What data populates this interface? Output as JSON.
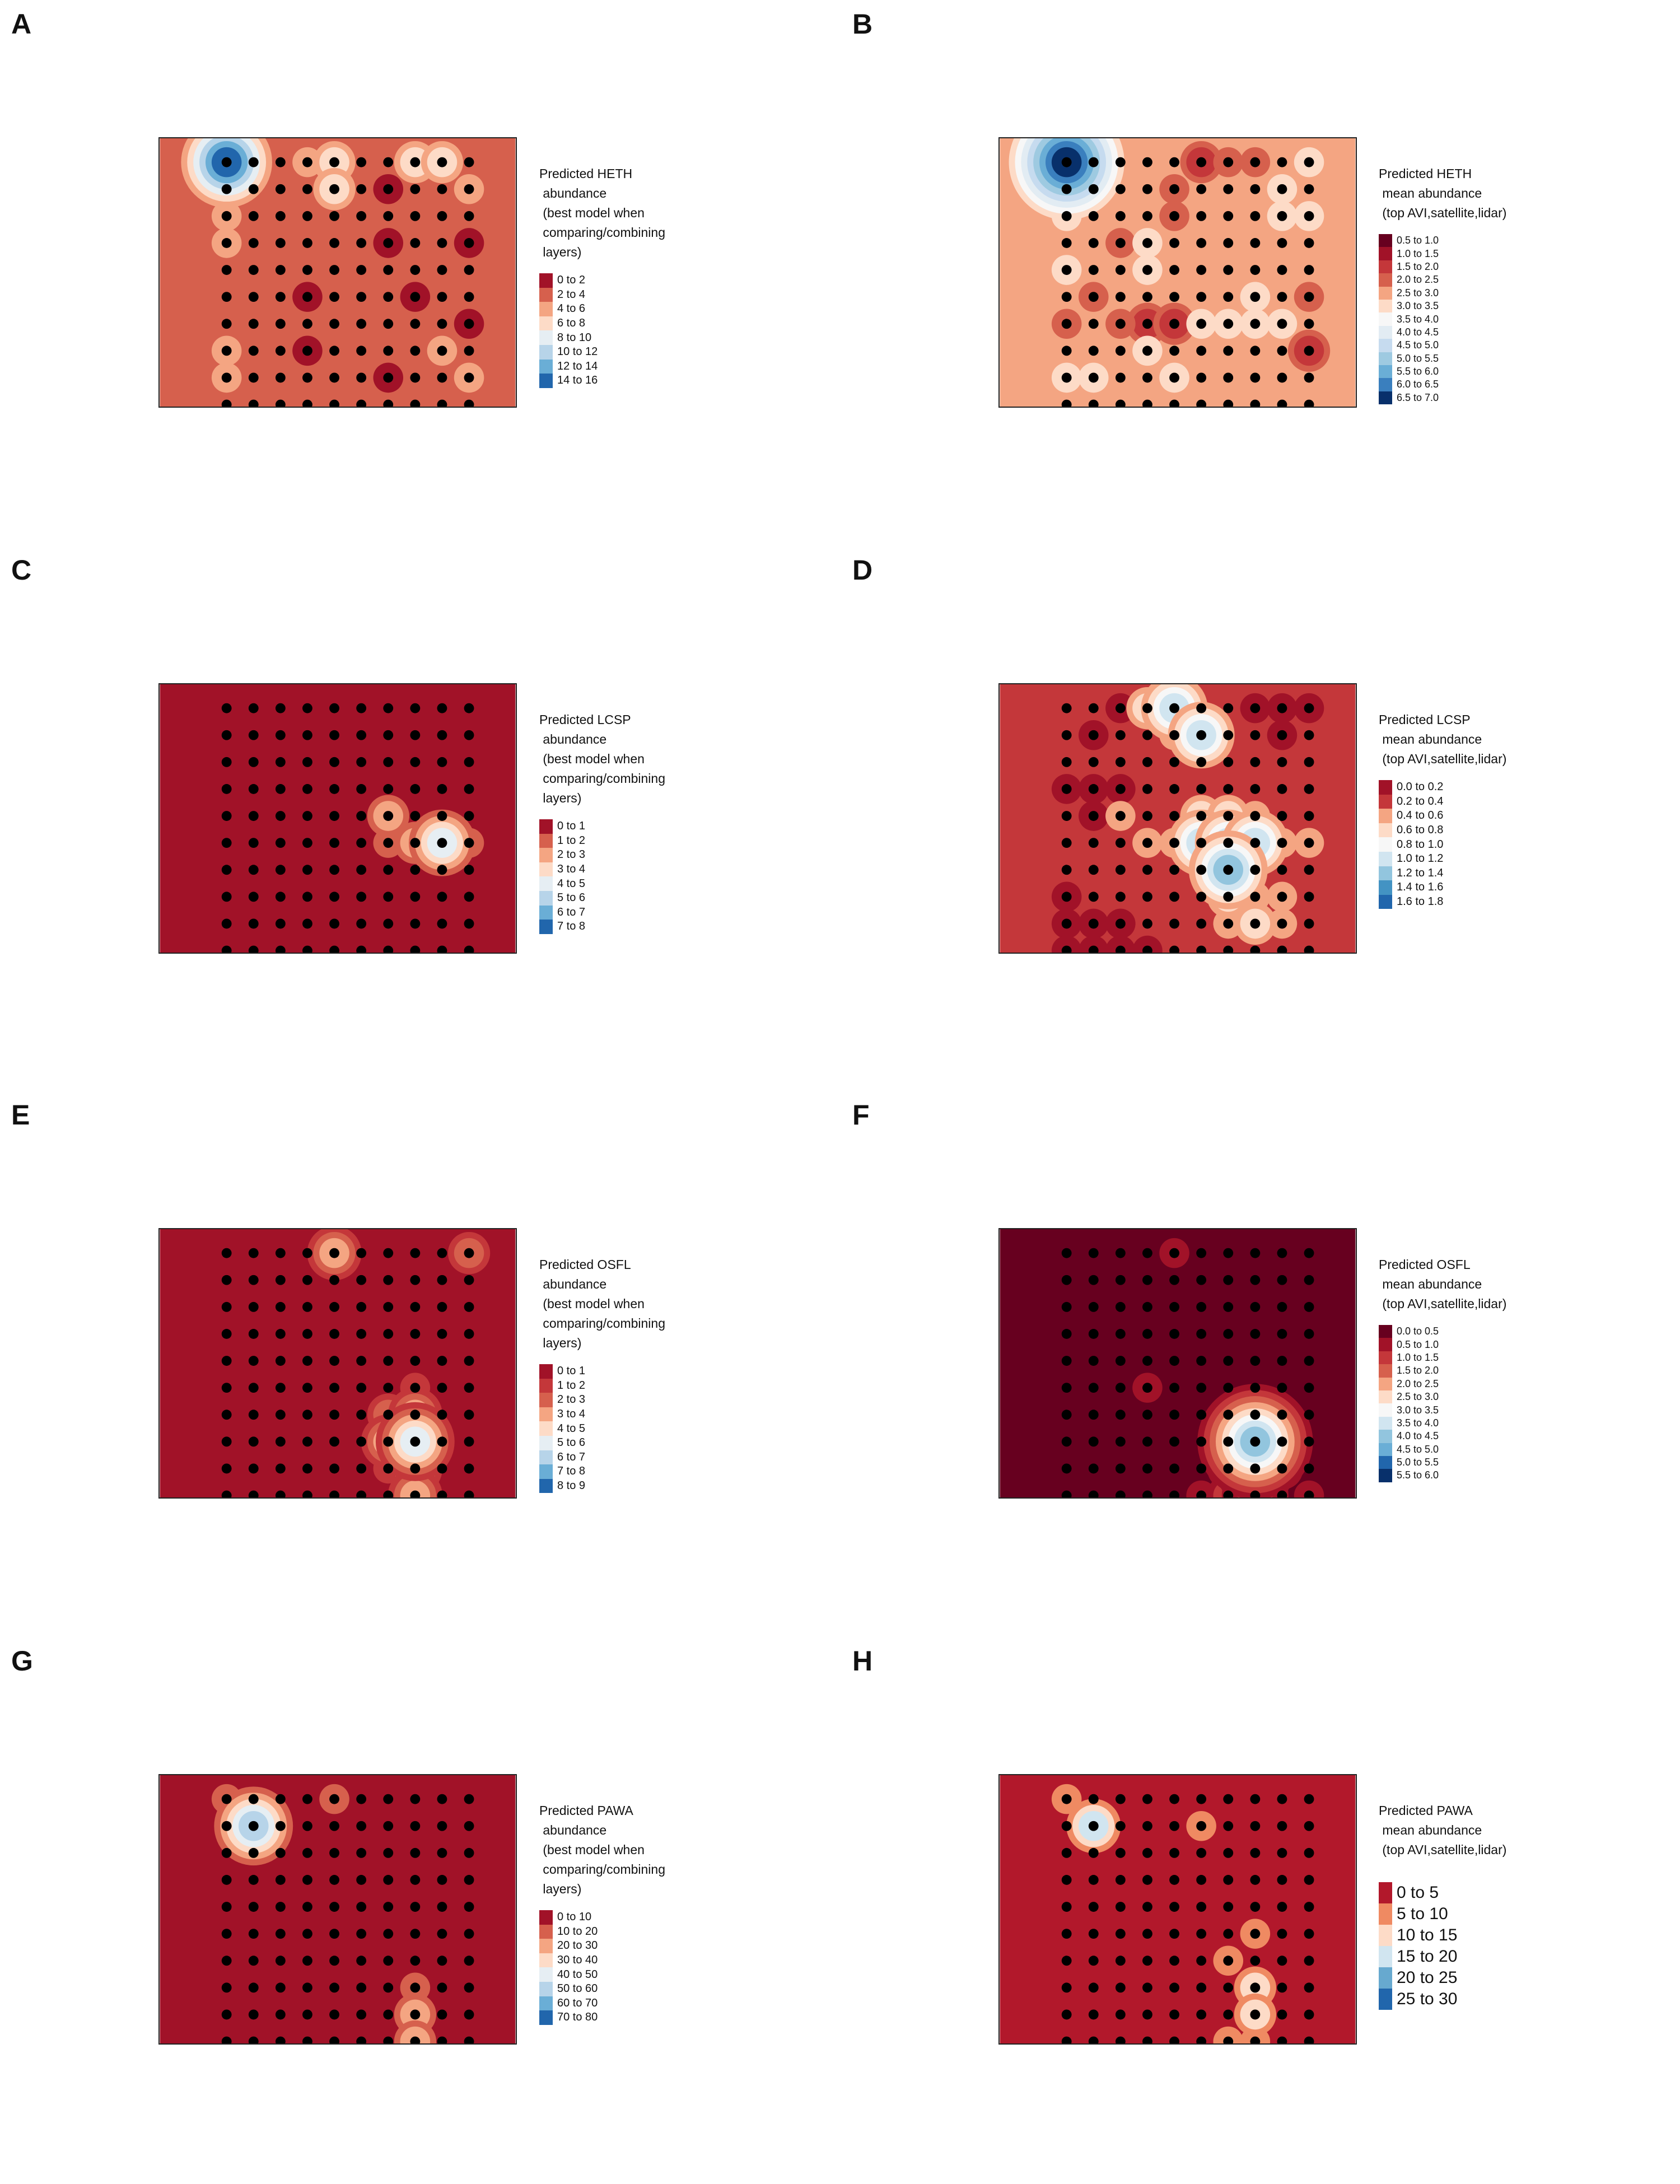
{
  "panels": [
    {
      "letter": "A",
      "legend_title": [
        "Predicted HETH",
        " abundance",
        " (best model when",
        " comparing/combining",
        " layers)"
      ],
      "legend": [
        "0 to 2",
        "2 to 4",
        "4 to 6",
        "6 to 8",
        "8 to 10",
        "10 to 12",
        "12 to 14",
        "14 to 16"
      ],
      "colors": [
        "#a11228",
        "#d6604d",
        "#f4a582",
        "#fddbc7",
        "#e6eef3",
        "#b7d4e9",
        "#6aaed6",
        "#2166ac"
      ],
      "base": 1,
      "hotspots": [
        [
          0,
          0,
          7
        ],
        [
          0,
          1,
          2
        ],
        [
          0,
          2,
          2
        ],
        [
          0,
          3,
          2
        ],
        [
          4,
          0,
          3
        ],
        [
          4,
          1,
          3
        ],
        [
          3,
          0,
          2
        ],
        [
          7,
          0,
          3
        ],
        [
          8,
          0,
          3
        ],
        [
          6,
          1,
          0
        ],
        [
          6,
          3,
          0
        ],
        [
          3,
          5,
          0
        ],
        [
          3,
          7,
          0
        ],
        [
          7,
          5,
          0
        ],
        [
          6,
          8,
          0
        ],
        [
          0,
          8,
          2
        ],
        [
          0,
          7,
          2
        ],
        [
          9,
          1,
          2
        ],
        [
          9,
          8,
          2
        ],
        [
          8,
          7,
          2
        ],
        [
          9,
          3,
          0
        ],
        [
          9,
          6,
          0
        ]
      ]
    },
    {
      "letter": "B",
      "legend_title": [
        "Predicted HETH",
        " mean abundance",
        " (top AVI,satellite,lidar)"
      ],
      "legend": [
        "0.5 to 1.0",
        "1.0 to 1.5",
        "1.5 to 2.0",
        "2.0 to 2.5",
        "2.5 to 3.0",
        "3.0 to 3.5",
        "3.5 to 4.0",
        "4.0 to 4.5",
        "4.5 to 5.0",
        "5.0 to 5.5",
        "5.5 to 6.0",
        "6.0 to 6.5",
        "6.5 to 7.0"
      ],
      "colors": [
        "#67001f",
        "#a11228",
        "#c4373a",
        "#d6604d",
        "#f4a582",
        "#fddbc7",
        "#f7f7f7",
        "#e2ecf3",
        "#c6dbef",
        "#9ecae1",
        "#6aaed6",
        "#3a7fbe",
        "#08306b"
      ],
      "base": 4,
      "hotspots": [
        [
          0,
          0,
          12
        ],
        [
          0,
          2,
          5
        ],
        [
          0,
          4,
          5
        ],
        [
          0,
          8,
          5
        ],
        [
          1,
          8,
          5
        ],
        [
          2,
          3,
          3
        ],
        [
          3,
          3,
          5
        ],
        [
          3,
          4,
          5
        ],
        [
          4,
          1,
          3
        ],
        [
          4,
          2,
          3
        ],
        [
          5,
          0,
          2
        ],
        [
          6,
          0,
          3
        ],
        [
          7,
          0,
          3
        ],
        [
          8,
          1,
          5
        ],
        [
          8,
          2,
          5
        ],
        [
          9,
          0,
          5
        ],
        [
          9,
          2,
          5
        ],
        [
          9,
          5,
          3
        ],
        [
          9,
          7,
          2
        ],
        [
          8,
          6,
          5
        ],
        [
          7,
          6,
          5
        ],
        [
          7,
          5,
          5
        ],
        [
          6,
          6,
          5
        ],
        [
          5,
          6,
          5
        ],
        [
          3,
          7,
          5
        ],
        [
          4,
          8,
          5
        ],
        [
          2,
          6,
          3
        ],
        [
          3,
          6,
          2
        ],
        [
          4,
          6,
          2
        ],
        [
          1,
          5,
          3
        ],
        [
          0,
          6,
          3
        ]
      ]
    },
    {
      "letter": "C",
      "legend_title": [
        "Predicted LCSP",
        " abundance",
        " (best model when",
        " comparing/combining",
        " layers)"
      ],
      "legend": [
        "0 to 1",
        "1 to 2",
        "2 to 3",
        "3 to 4",
        "4 to 5",
        "5 to 6",
        "6 to 7",
        "7 to 8"
      ],
      "colors": [
        "#a11228",
        "#d6604d",
        "#f4a582",
        "#fddbc7",
        "#e6eef3",
        "#b7d4e9",
        "#6aaed6",
        "#2166ac"
      ],
      "base": 0,
      "hotspots": [
        [
          8,
          5,
          4
        ],
        [
          7,
          5,
          2
        ],
        [
          6,
          4,
          2
        ],
        [
          6,
          5,
          1
        ],
        [
          9,
          5,
          1
        ]
      ]
    },
    {
      "letter": "D",
      "legend_title": [
        "Predicted LCSP",
        " mean abundance",
        " (top AVI,satellite,lidar)"
      ],
      "legend": [
        "0.0 to 0.2",
        "0.2 to 0.4",
        "0.4 to 0.6",
        "0.6 to 0.8",
        "0.8 to 1.0",
        "1.0 to 1.2",
        "1.2 to 1.4",
        "1.4 to 1.6",
        "1.6 to 1.8"
      ],
      "colors": [
        "#a11228",
        "#c4373a",
        "#f4a582",
        "#fddbc7",
        "#f7f7f7",
        "#d1e5f0",
        "#92c5de",
        "#4393c3",
        "#2166ac"
      ],
      "base": 1,
      "hotspots": [
        [
          3,
          0,
          3
        ],
        [
          4,
          0,
          5
        ],
        [
          5,
          1,
          5
        ],
        [
          4,
          1,
          2
        ],
        [
          5,
          5,
          5
        ],
        [
          6,
          5,
          5
        ],
        [
          7,
          5,
          5
        ],
        [
          6,
          6,
          6
        ],
        [
          5,
          4,
          3
        ],
        [
          6,
          4,
          3
        ],
        [
          7,
          4,
          2
        ],
        [
          8,
          5,
          2
        ],
        [
          3,
          5,
          2
        ],
        [
          4,
          5,
          2
        ],
        [
          6,
          7,
          3
        ],
        [
          7,
          8,
          3
        ],
        [
          7,
          7,
          2
        ],
        [
          6,
          8,
          2
        ],
        [
          8,
          7,
          2
        ],
        [
          8,
          8,
          2
        ],
        [
          9,
          5,
          2
        ],
        [
          2,
          4,
          2
        ],
        [
          0,
          2,
          1
        ],
        [
          0,
          3,
          0
        ],
        [
          1,
          3,
          0
        ],
        [
          2,
          3,
          0
        ],
        [
          1,
          4,
          0
        ],
        [
          7,
          0,
          0
        ],
        [
          8,
          0,
          0
        ],
        [
          9,
          0,
          0
        ],
        [
          8,
          1,
          0
        ],
        [
          2,
          0,
          0
        ],
        [
          1,
          1,
          0
        ],
        [
          0,
          7,
          0
        ],
        [
          0,
          8,
          0
        ],
        [
          1,
          8,
          0
        ],
        [
          2,
          8,
          0
        ],
        [
          0,
          9,
          0
        ],
        [
          1,
          9,
          0
        ],
        [
          2,
          9,
          0
        ],
        [
          3,
          9,
          0
        ]
      ]
    },
    {
      "letter": "E",
      "legend_title": [
        "Predicted OSFL",
        " abundance",
        " (best model when",
        " comparing/combining",
        " layers)"
      ],
      "legend": [
        "0 to 1",
        "1 to 2",
        "2 to 3",
        "3 to 4",
        "4 to 5",
        "5 to 6",
        "6 to 7",
        "7 to 8",
        "8 to 9"
      ],
      "colors": [
        "#a11228",
        "#c4373a",
        "#d6604d",
        "#f4a582",
        "#fddbc7",
        "#e6eef3",
        "#b7d4e9",
        "#6aaed6",
        "#2166ac"
      ],
      "base": 0,
      "hotspots": [
        [
          4,
          0,
          3
        ],
        [
          9,
          0,
          2
        ],
        [
          7,
          7,
          5
        ],
        [
          7,
          6,
          3
        ],
        [
          6,
          7,
          3
        ],
        [
          7,
          8,
          3
        ],
        [
          7,
          9,
          3
        ],
        [
          6,
          6,
          2
        ],
        [
          6,
          8,
          1
        ],
        [
          7,
          5,
          1
        ]
      ]
    },
    {
      "letter": "F",
      "legend_title": [
        "Predicted OSFL",
        " mean abundance",
        " (top AVI,satellite,lidar)"
      ],
      "legend": [
        "0.0 to 0.5",
        "0.5 to 1.0",
        "1.0 to 1.5",
        "1.5 to 2.0",
        "2.0 to 2.5",
        "2.5 to 3.0",
        "3.0 to 3.5",
        "3.5 to 4.0",
        "4.0 to 4.5",
        "4.5 to 5.0",
        "5.0 to 5.5",
        "5.5 to 6.0"
      ],
      "colors": [
        "#67001f",
        "#a11228",
        "#c4373a",
        "#d6604d",
        "#f4a582",
        "#fddbc7",
        "#f7f7f7",
        "#d1e5f0",
        "#92c5de",
        "#6aaed6",
        "#2166ac",
        "#08306b"
      ],
      "base": 0,
      "hotspots": [
        [
          7,
          7,
          8
        ],
        [
          7,
          8,
          5
        ],
        [
          7,
          9,
          4
        ],
        [
          7,
          6,
          3
        ],
        [
          6,
          7,
          2
        ],
        [
          6,
          8,
          2
        ],
        [
          6,
          9,
          2
        ],
        [
          8,
          7,
          2
        ],
        [
          8,
          8,
          2
        ],
        [
          6,
          6,
          1
        ],
        [
          8,
          6,
          1
        ],
        [
          4,
          0,
          1
        ],
        [
          3,
          5,
          1
        ],
        [
          5,
          9,
          1
        ],
        [
          9,
          9,
          1
        ]
      ]
    },
    {
      "letter": "G",
      "legend_title": [
        "Predicted PAWA",
        " abundance",
        " (best model when",
        " comparing/combining",
        " layers)"
      ],
      "legend": [
        "0 to 10",
        "10 to 20",
        "20 to 30",
        "30 to 40",
        "40 to 50",
        "50 to 60",
        "60 to 70",
        "70 to 80"
      ],
      "colors": [
        "#a11228",
        "#d6604d",
        "#f4a582",
        "#fddbc7",
        "#e6eef3",
        "#b7d4e9",
        "#6aaed6",
        "#2166ac"
      ],
      "base": 0,
      "hotspots": [
        [
          1,
          1,
          5
        ],
        [
          0,
          0,
          1
        ],
        [
          4,
          0,
          1
        ],
        [
          7,
          8,
          2
        ],
        [
          7,
          9,
          2
        ],
        [
          7,
          7,
          1
        ]
      ]
    },
    {
      "letter": "H",
      "legend_title": [
        "Predicted PAWA",
        " mean abundance",
        " (top AVI,satellite,lidar)"
      ],
      "legend": [
        "0 to 5",
        "5 to 10",
        "10 to 15",
        "15 to 20",
        "20 to 25",
        "25 to 30"
      ],
      "colors": [
        "#b2182b",
        "#ef8a62",
        "#fddbc7",
        "#d1e5f0",
        "#67a9cf",
        "#2166ac"
      ],
      "base": 0,
      "hotspots": [
        [
          1,
          1,
          3
        ],
        [
          0,
          0,
          1
        ],
        [
          5,
          1,
          1
        ],
        [
          7,
          7,
          2
        ],
        [
          7,
          8,
          2
        ],
        [
          7,
          9,
          1
        ],
        [
          6,
          6,
          1
        ],
        [
          7,
          5,
          1
        ],
        [
          6,
          9,
          1
        ]
      ]
    }
  ],
  "chart_data": {
    "type": "heatmap",
    "panels": [
      {
        "letter": "A",
        "legend_title": "Predicted HETH abundance (best model when comparing/combining layers)",
        "classes": [
          "0 to 2",
          "2 to 4",
          "4 to 6",
          "6 to 8",
          "8 to 10",
          "10 to 12",
          "12 to 14",
          "14 to 16"
        ]
      },
      {
        "letter": "B",
        "legend_title": "Predicted HETH mean abundance (top AVI,satellite,lidar)",
        "classes": [
          "0.5 to 1.0",
          "1.0 to 1.5",
          "1.5 to 2.0",
          "2.0 to 2.5",
          "2.5 to 3.0",
          "3.0 to 3.5",
          "3.5 to 4.0",
          "4.0 to 4.5",
          "4.5 to 5.0",
          "5.0 to 5.5",
          "5.5 to 6.0",
          "6.0 to 6.5",
          "6.5 to 7.0"
        ]
      },
      {
        "letter": "C",
        "legend_title": "Predicted LCSP abundance (best model when comparing/combining layers)",
        "classes": [
          "0 to 1",
          "1 to 2",
          "2 to 3",
          "3 to 4",
          "4 to 5",
          "5 to 6",
          "6 to 7",
          "7 to 8"
        ]
      },
      {
        "letter": "D",
        "legend_title": "Predicted LCSP mean abundance (top AVI,satellite,lidar)",
        "classes": [
          "0.0 to 0.2",
          "0.2 to 0.4",
          "0.4 to 0.6",
          "0.6 to 0.8",
          "0.8 to 1.0",
          "1.0 to 1.2",
          "1.2 to 1.4",
          "1.4 to 1.6",
          "1.6 to 1.8"
        ]
      },
      {
        "letter": "E",
        "legend_title": "Predicted OSFL abundance (best model when comparing/combining layers)",
        "classes": [
          "0 to 1",
          "1 to 2",
          "2 to 3",
          "3 to 4",
          "4 to 5",
          "5 to 6",
          "6 to 7",
          "7 to 8",
          "8 to 9"
        ]
      },
      {
        "letter": "F",
        "legend_title": "Predicted OSFL mean abundance (top AVI,satellite,lidar)",
        "classes": [
          "0.0 to 0.5",
          "0.5 to 1.0",
          "1.0 to 1.5",
          "1.5 to 2.0",
          "2.0 to 2.5",
          "2.5 to 3.0",
          "3.0 to 3.5",
          "3.5 to 4.0",
          "4.0 to 4.5",
          "4.5 to 5.0",
          "5.0 to 5.5",
          "5.5 to 6.0"
        ]
      },
      {
        "letter": "G",
        "legend_title": "Predicted PAWA abundance (best model when comparing/combining layers)",
        "classes": [
          "0 to 10",
          "10 to 20",
          "20 to 30",
          "30 to 40",
          "40 to 50",
          "50 to 60",
          "60 to 70",
          "70 to 80"
        ]
      },
      {
        "letter": "H",
        "legend_title": "Predicted PAWA mean abundance (top AVI,satellite,lidar)",
        "classes": [
          "0 to 5",
          "5 to 10",
          "10 to 15",
          "15 to 20",
          "20 to 25",
          "25 to 30"
        ]
      }
    ],
    "survey_grid": {
      "columns": 10,
      "rows": 10
    }
  }
}
